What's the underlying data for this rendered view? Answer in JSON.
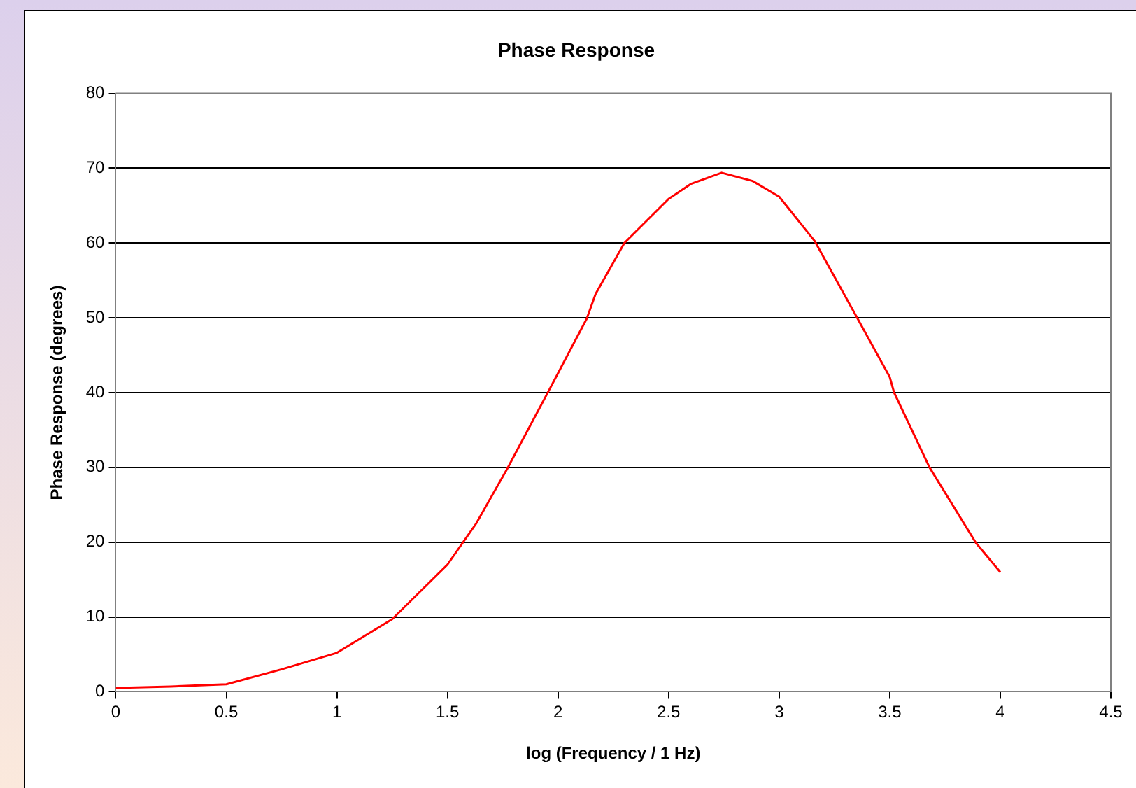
{
  "chart_data": {
    "type": "line",
    "title": "Phase Response",
    "xlabel": "log (Frequency / 1 Hz)",
    "ylabel": "Phase Response (degrees)",
    "x": [
      0,
      0.25,
      0.5,
      0.75,
      1,
      1.25,
      1.5,
      1.63,
      1.77,
      1.95,
      2,
      2.13,
      2.17,
      2.3,
      2.5,
      2.6,
      2.74,
      2.88,
      3,
      3.16,
      3.34,
      3.5,
      3.52,
      3.68,
      3.89,
      4
    ],
    "series": [
      {
        "color": "#ff0000",
        "values": [
          0.5,
          0.7,
          1,
          3,
          5.2,
          9.7,
          17,
          22.5,
          29.8,
          39.8,
          42.6,
          49.9,
          53.2,
          60,
          65.9,
          67.9,
          69.4,
          68.3,
          66.2,
          60.3,
          50.7,
          42.1,
          40,
          30,
          19.9,
          16
        ]
      }
    ],
    "xlim": [
      0,
      4.5
    ],
    "xticks": [
      0,
      0.5,
      1,
      1.5,
      2,
      2.5,
      3,
      3.5,
      4,
      4.5
    ],
    "ylim": [
      0,
      80
    ],
    "yticks": [
      0,
      10,
      20,
      30,
      40,
      50,
      60,
      70,
      80
    ],
    "grid": "y",
    "legend": false,
    "marker": "none",
    "line_style": "solid"
  }
}
